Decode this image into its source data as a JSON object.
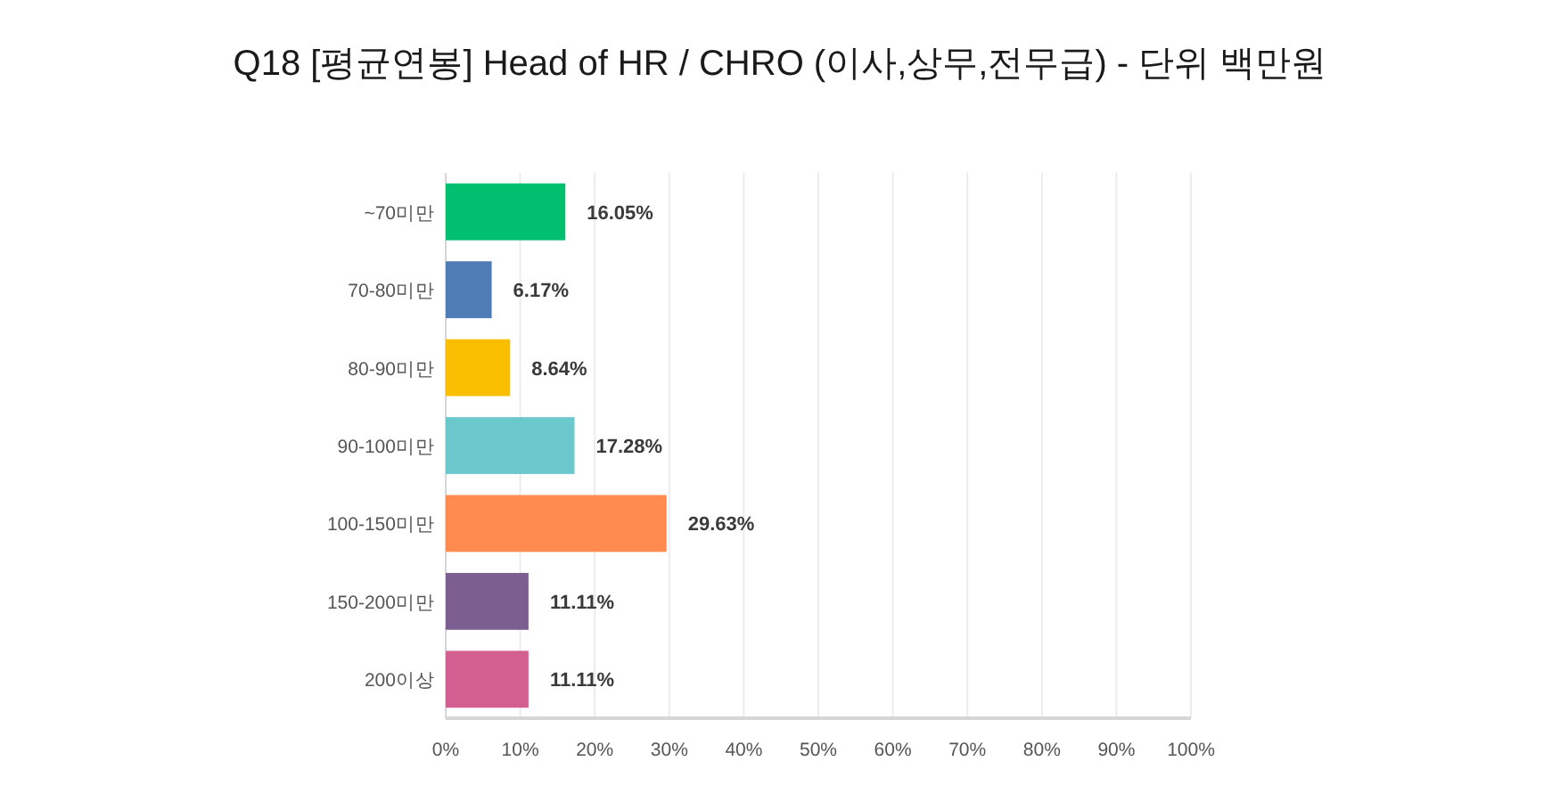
{
  "chart_data": {
    "type": "bar",
    "orientation": "horizontal",
    "title": "Q18 [평균연봉] Head of HR / CHRO (이사,상무,전무급) - 단위 백만원",
    "categories": [
      "~70미만",
      "70-80미만",
      "80-90미만",
      "90-100미만",
      "100-150미만",
      "150-200미만",
      "200이상"
    ],
    "values": [
      16.05,
      6.17,
      8.64,
      17.28,
      29.63,
      11.11,
      11.11
    ],
    "colors": [
      "#00bf6f",
      "#507cb6",
      "#f9be00",
      "#6bc8cd",
      "#ff8b4f",
      "#7d5e90",
      "#d25f90"
    ],
    "value_labels": [
      "16.05%",
      "6.17%",
      "8.64%",
      "17.28%",
      "29.63%",
      "11.11%",
      "11.11%"
    ],
    "xlim": [
      0,
      100
    ],
    "xticks": [
      {
        "value": 0,
        "label": "0%"
      },
      {
        "value": 10,
        "label": "10%"
      },
      {
        "value": 20,
        "label": "20%"
      },
      {
        "value": 30,
        "label": "30%"
      },
      {
        "value": 40,
        "label": "40%"
      },
      {
        "value": 50,
        "label": "50%"
      },
      {
        "value": 60,
        "label": "60%"
      },
      {
        "value": 70,
        "label": "70%"
      },
      {
        "value": 80,
        "label": "80%"
      },
      {
        "value": 90,
        "label": "90%"
      },
      {
        "value": 100,
        "label": "100%"
      }
    ],
    "grid": "x"
  }
}
